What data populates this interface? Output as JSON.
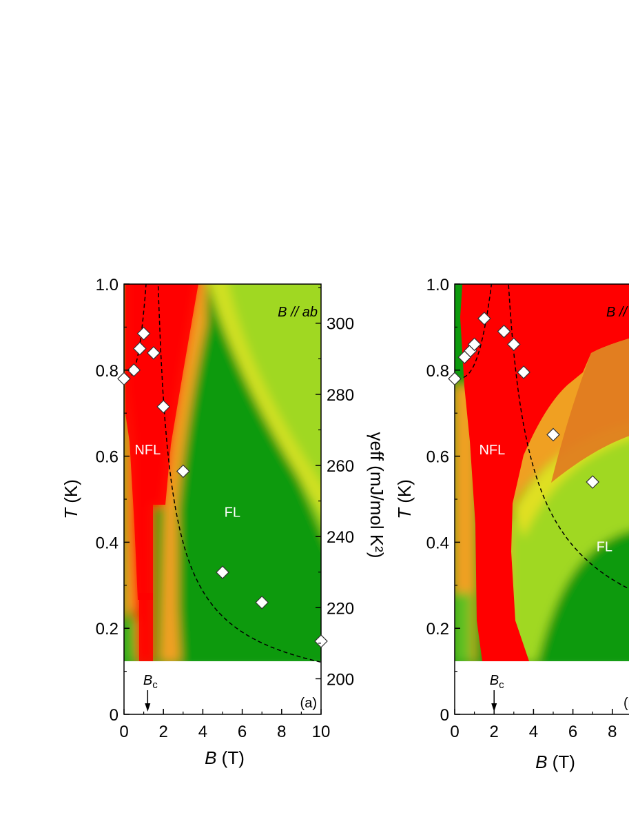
{
  "chart_data": [
    {
      "type": "heatmap",
      "panel_label": "(a)",
      "field_direction": {
        "prefix": "B",
        "rest": " // ab"
      },
      "xlabel": {
        "symbol": "B",
        "unit": " (T)"
      },
      "ylabel": {
        "symbol": "T",
        "unit": " (K)"
      },
      "y2label": "γeff (mJ/mol K²)",
      "xlim": [
        0,
        10
      ],
      "ylim": [
        0,
        1.0
      ],
      "y2lim": [
        190,
        311
      ],
      "x_ticks": [
        "0",
        "2",
        "4",
        "6",
        "8",
        "10"
      ],
      "y_ticks": [
        "0",
        "0.2",
        "0.4",
        "0.6",
        "0.8",
        "1.0"
      ],
      "y2_ticks": [
        "200",
        "220",
        "240",
        "260",
        "280",
        "300"
      ],
      "data_floor_T": 0.125,
      "critical_field": {
        "label_main": "B",
        "label_sub": "c",
        "value": 1.2
      },
      "regions": [
        {
          "label": "NFL",
          "B": 1.2,
          "T": 0.615
        },
        {
          "label": "FL",
          "B": 5.5,
          "T": 0.47
        }
      ],
      "color_scale": {
        "low": "#009000",
        "mid": "#a0d820",
        "high_mid": "#f0a020",
        "high": "#ff0000"
      },
      "points": [
        {
          "B": 0,
          "T": 0.78
        },
        {
          "B": 0.5,
          "T": 0.8
        },
        {
          "B": 0.8,
          "T": 0.85
        },
        {
          "B": 1.0,
          "T": 0.885
        },
        {
          "B": 1.5,
          "T": 0.84
        },
        {
          "B": 2.0,
          "T": 0.715
        },
        {
          "B": 3.0,
          "T": 0.565
        },
        {
          "B": 5.0,
          "T": 0.33
        },
        {
          "B": 7.0,
          "T": 0.26
        },
        {
          "B": 10.0,
          "T": 0.17
        }
      ],
      "crossover_left": {
        "center": 1.2,
        "T0": 0.59,
        "exponent": 1.0,
        "note": "dashed"
      },
      "crossover_right": {
        "center": 1.2,
        "T0": 0.62,
        "exponent": 0.75,
        "note": "dashed"
      }
    },
    {
      "type": "heatmap",
      "panel_label": "(b)",
      "field_direction": {
        "prefix": "B",
        "rest": " // c"
      },
      "xlabel": {
        "symbol": "B",
        "unit": " (T)"
      },
      "ylabel": {
        "symbol": "T",
        "unit": " (K)"
      },
      "xlim": [
        0,
        10
      ],
      "ylim": [
        0,
        1.0
      ],
      "x_ticks": [
        "0",
        "2",
        "4",
        "6",
        "8"
      ],
      "y_ticks": [
        "0",
        "0.2",
        "0.4",
        "0.6",
        "0.8",
        "1.0"
      ],
      "data_floor_T": 0.125,
      "critical_field": {
        "label_main": "B",
        "label_sub": "c",
        "value": 2.0
      },
      "regions": [
        {
          "label": "NFL",
          "B": 1.9,
          "T": 0.615
        },
        {
          "label": "FL",
          "B": 7.6,
          "T": 0.39
        }
      ],
      "points": [
        {
          "B": 0,
          "T": 0.78
        },
        {
          "B": 0.5,
          "T": 0.83
        },
        {
          "B": 0.8,
          "T": 0.845
        },
        {
          "B": 1.0,
          "T": 0.86
        },
        {
          "B": 1.5,
          "T": 0.92
        },
        {
          "B": 2.5,
          "T": 0.89
        },
        {
          "B": 3.0,
          "T": 0.86
        },
        {
          "B": 3.5,
          "T": 0.795
        },
        {
          "B": 5.0,
          "T": 0.65
        },
        {
          "B": 7.0,
          "T": 0.54
        }
      ],
      "crossover_left": {
        "center": 2.0,
        "T0": 0.62,
        "exponent": 1.0,
        "note": "dashed"
      },
      "crossover_right": {
        "center": 2.0,
        "T0": 0.84,
        "exponent": 0.55,
        "note": "dashed"
      }
    }
  ]
}
